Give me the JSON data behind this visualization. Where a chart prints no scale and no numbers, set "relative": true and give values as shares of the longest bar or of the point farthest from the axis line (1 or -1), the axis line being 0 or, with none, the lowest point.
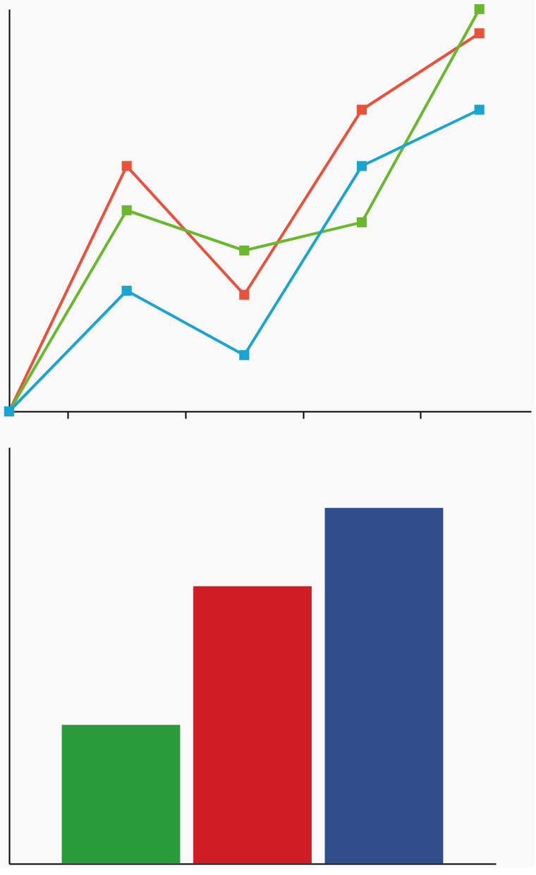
{
  "chart_data": [
    {
      "type": "line",
      "relative": true,
      "categories": [
        null,
        null,
        null,
        null,
        null
      ],
      "marker": "square",
      "line_style": "solid",
      "grid": false,
      "legend": false,
      "series": [
        {
          "color": "#e8523a",
          "values": [
            0,
            0.61,
            0.29,
            0.75,
            0.94
          ]
        },
        {
          "color": "#6ab82e",
          "values": [
            0,
            0.5,
            0.4,
            0.47,
            1
          ]
        },
        {
          "color": "#1ba4cf",
          "values": [
            0,
            0.3,
            0.14,
            0.61,
            0.75
          ]
        }
      ]
    },
    {
      "type": "bar",
      "relative": true,
      "categories": [
        null,
        null,
        null
      ],
      "grid": false,
      "legend": false,
      "values": [
        0.39,
        0.78,
        1
      ],
      "colors": [
        "#2a9a3a",
        "#d01c24",
        "#2f4d8a"
      ]
    }
  ]
}
